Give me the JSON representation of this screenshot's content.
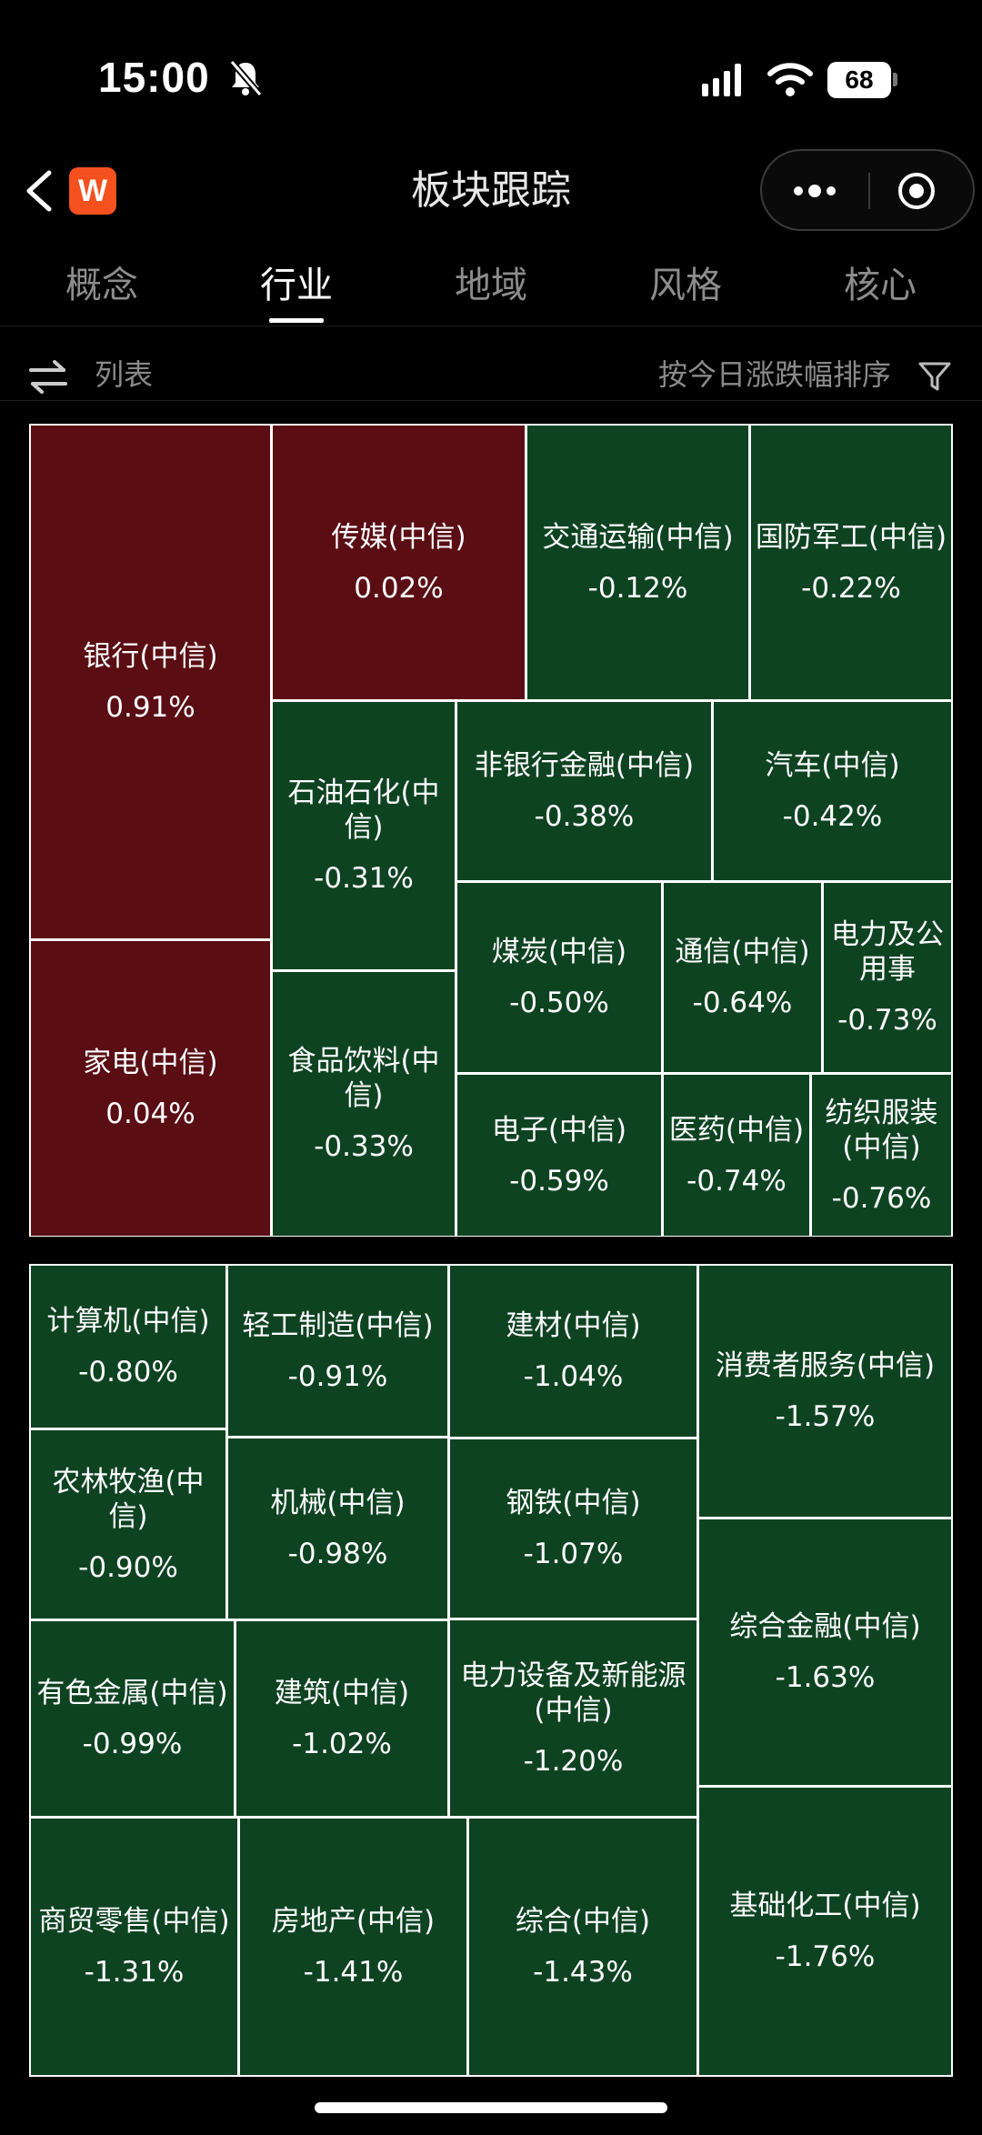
{
  "status_bar": {
    "time": "15:00",
    "battery": "68"
  },
  "header": {
    "title": "板块跟踪",
    "logo_letter": "W"
  },
  "tabs": [
    {
      "label": "概念",
      "active": false
    },
    {
      "label": "行业",
      "active": true
    },
    {
      "label": "地域",
      "active": false
    },
    {
      "label": "风格",
      "active": false
    },
    {
      "label": "核心",
      "active": false
    }
  ],
  "toolbar": {
    "list_label": "列表",
    "sort_label": "按今日涨跌幅排序"
  },
  "colors": {
    "up": "#5a0e14",
    "down": "#0e4322",
    "accent_logo": "#f4511e"
  },
  "treemap": [
    {
      "name": "银行(中信)",
      "change": "0.91%",
      "trend": "up"
    },
    {
      "name": "家电(中信)",
      "change": "0.04%",
      "trend": "up"
    },
    {
      "name": "传媒(中信)",
      "change": "0.02%",
      "trend": "up"
    },
    {
      "name": "交通运输(中信)",
      "change": "-0.12%",
      "trend": "down"
    },
    {
      "name": "国防军工(中信)",
      "change": "-0.22%",
      "trend": "down"
    },
    {
      "name": "石油石化(中信)",
      "change": "-0.31%",
      "trend": "down"
    },
    {
      "name": "食品饮料(中信)",
      "change": "-0.33%",
      "trend": "down"
    },
    {
      "name": "非银行金融(中信)",
      "change": "-0.38%",
      "trend": "down"
    },
    {
      "name": "汽车(中信)",
      "change": "-0.42%",
      "trend": "down"
    },
    {
      "name": "煤炭(中信)",
      "change": "-0.50%",
      "trend": "down"
    },
    {
      "name": "通信(中信)",
      "change": "-0.64%",
      "trend": "down"
    },
    {
      "name": "电力及公用事",
      "change": "-0.73%",
      "trend": "down"
    },
    {
      "name": "电子(中信)",
      "change": "-0.59%",
      "trend": "down"
    },
    {
      "name": "医药(中信)",
      "change": "-0.74%",
      "trend": "down"
    },
    {
      "name": "纺织服装(中信)",
      "change": "-0.76%",
      "trend": "down"
    },
    {
      "name": "计算机(中信)",
      "change": "-0.80%",
      "trend": "down"
    },
    {
      "name": "轻工制造(中信)",
      "change": "-0.91%",
      "trend": "down"
    },
    {
      "name": "建材(中信)",
      "change": "-1.04%",
      "trend": "down"
    },
    {
      "name": "消费者服务(中信)",
      "change": "-1.57%",
      "trend": "down"
    },
    {
      "name": "农林牧渔(中信)",
      "change": "-0.90%",
      "trend": "down"
    },
    {
      "name": "机械(中信)",
      "change": "-0.98%",
      "trend": "down"
    },
    {
      "name": "钢铁(中信)",
      "change": "-1.07%",
      "trend": "down"
    },
    {
      "name": "综合金融(中信)",
      "change": "-1.63%",
      "trend": "down"
    },
    {
      "name": "有色金属(中信)",
      "change": "-0.99%",
      "trend": "down"
    },
    {
      "name": "建筑(中信)",
      "change": "-1.02%",
      "trend": "down"
    },
    {
      "name": "电力设备及新能源(中信)",
      "change": "-1.20%",
      "trend": "down"
    },
    {
      "name": "商贸零售(中信)",
      "change": "-1.31%",
      "trend": "down"
    },
    {
      "name": "房地产(中信)",
      "change": "-1.41%",
      "trend": "down"
    },
    {
      "name": "综合(中信)",
      "change": "-1.43%",
      "trend": "down"
    },
    {
      "name": "基础化工(中信)",
      "change": "-1.76%",
      "trend": "down"
    }
  ]
}
